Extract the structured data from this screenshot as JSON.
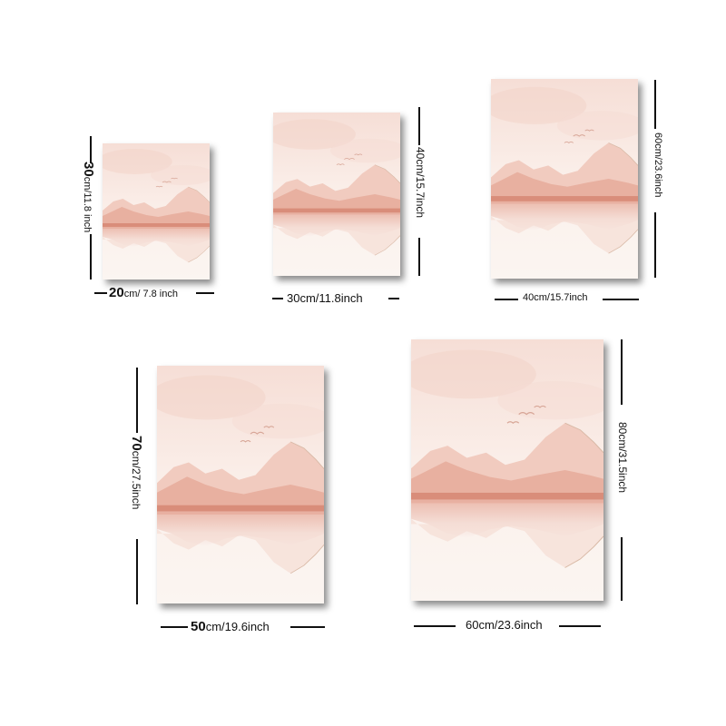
{
  "colors": {
    "background": "#ffffff",
    "paper": "#fbf5f1",
    "sky_blush": "#f6ded6",
    "mountain_light": "#f1cbbf",
    "mountain_mid": "#e8b0a0",
    "horizon_band": "#d98d7a",
    "reflection": "#f3d7cd",
    "shadow": "#555555"
  },
  "icons": [
    "birds-icon",
    "mountain-landscape-artwork"
  ],
  "posters": [
    {
      "id": "20x30",
      "width_label_num": "20",
      "width_label_unit": "cm/ 7.8 inch",
      "height_label_num": "30",
      "height_label_unit": "cm/11.8 inch"
    },
    {
      "id": "30x40",
      "width_label": "30cm/11.8inch",
      "height_label": "40cm/15.7inch"
    },
    {
      "id": "40x60",
      "width_label": "40cm/15.7inch",
      "height_label": "60cm/23.6inch"
    },
    {
      "id": "50x70",
      "width_label_num": "50",
      "width_label_unit": "cm/19.6inch",
      "height_label_num": "70",
      "height_label_unit": "cm/27.5inch"
    },
    {
      "id": "60x80",
      "width_label": "60cm/23.6inch",
      "height_label": "80cm/31.5inch"
    }
  ]
}
